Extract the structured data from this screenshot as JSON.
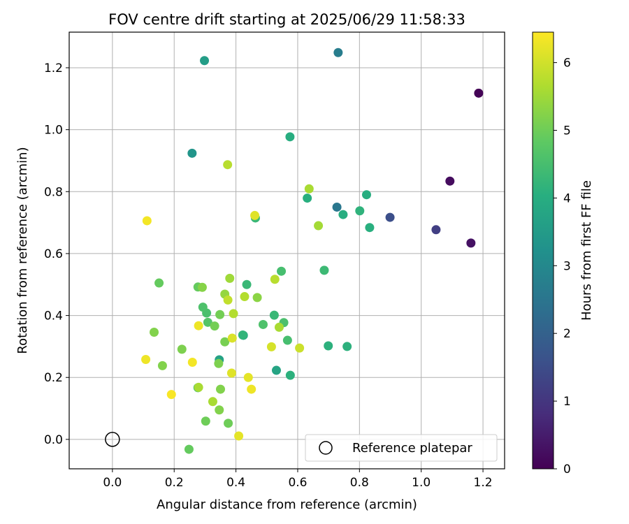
{
  "chart_data": {
    "type": "scatter",
    "title": "FOV centre drift starting at 2025/06/29 11:58:33",
    "xlabel": "Angular distance from reference (arcmin)",
    "ylabel": "Rotation from reference (arcmin)",
    "xlim": [
      -0.14,
      1.27
    ],
    "ylim": [
      -0.095,
      1.315
    ],
    "xticks": [
      0.0,
      0.2,
      0.4,
      0.6,
      0.8,
      1.0,
      1.2
    ],
    "yticks": [
      0.0,
      0.2,
      0.4,
      0.6,
      0.8,
      1.0,
      1.2
    ],
    "xtick_labels": [
      "0.0",
      "0.2",
      "0.4",
      "0.6",
      "0.8",
      "1.0",
      "1.2"
    ],
    "ytick_labels": [
      "0.0",
      "0.2",
      "0.4",
      "0.6",
      "0.8",
      "1.0",
      "1.2"
    ],
    "grid": true,
    "colormap": "viridis",
    "colorbar": {
      "label": "Hours from first FF file",
      "range": [
        0,
        6.45
      ],
      "ticks": [
        0,
        1,
        2,
        3,
        4,
        5,
        6
      ],
      "tick_labels": [
        "0",
        "1",
        "2",
        "3",
        "4",
        "5",
        "6"
      ]
    },
    "legend": {
      "placement": "lower-right",
      "entries": [
        {
          "label": "Reference platepar"
        }
      ]
    },
    "reference_point": {
      "x": 0.0,
      "y": 0.0
    },
    "points": [
      {
        "x": 1.186,
        "y": 1.118,
        "h": 0.05
      },
      {
        "x": 1.093,
        "y": 0.834,
        "h": 0.2
      },
      {
        "x": 1.161,
        "y": 0.634,
        "h": 0.3
      },
      {
        "x": 1.048,
        "y": 0.677,
        "h": 1.2
      },
      {
        "x": 0.899,
        "y": 0.717,
        "h": 1.55
      },
      {
        "x": 0.727,
        "y": 0.75,
        "h": 2.55
      },
      {
        "x": 0.731,
        "y": 1.249,
        "h": 2.7
      },
      {
        "x": 0.258,
        "y": 0.924,
        "h": 3.35
      },
      {
        "x": 0.298,
        "y": 1.223,
        "h": 3.55
      },
      {
        "x": 0.424,
        "y": 0.336,
        "h": 3.75
      },
      {
        "x": 0.346,
        "y": 0.257,
        "h": 3.7
      },
      {
        "x": 0.531,
        "y": 0.223,
        "h": 3.75
      },
      {
        "x": 0.575,
        "y": 0.977,
        "h": 4.0
      },
      {
        "x": 0.747,
        "y": 0.726,
        "h": 4.0
      },
      {
        "x": 0.823,
        "y": 0.79,
        "h": 4.0
      },
      {
        "x": 0.833,
        "y": 0.684,
        "h": 4.05
      },
      {
        "x": 0.801,
        "y": 0.738,
        "h": 4.15
      },
      {
        "x": 0.631,
        "y": 0.779,
        "h": 4.05
      },
      {
        "x": 0.699,
        "y": 0.302,
        "h": 4.1
      },
      {
        "x": 0.76,
        "y": 0.3,
        "h": 4.1
      },
      {
        "x": 0.576,
        "y": 0.207,
        "h": 4.1
      },
      {
        "x": 0.686,
        "y": 0.546,
        "h": 4.35
      },
      {
        "x": 0.435,
        "y": 0.5,
        "h": 4.3
      },
      {
        "x": 0.463,
        "y": 0.715,
        "h": 4.3
      },
      {
        "x": 0.524,
        "y": 0.401,
        "h": 4.3
      },
      {
        "x": 0.422,
        "y": 0.337,
        "h": 4.2
      },
      {
        "x": 0.567,
        "y": 0.32,
        "h": 4.5
      },
      {
        "x": 0.555,
        "y": 0.377,
        "h": 4.55
      },
      {
        "x": 0.547,
        "y": 0.543,
        "h": 4.5
      },
      {
        "x": 0.488,
        "y": 0.371,
        "h": 4.6
      },
      {
        "x": 0.305,
        "y": 0.408,
        "h": 4.55
      },
      {
        "x": 0.293,
        "y": 0.427,
        "h": 4.6
      },
      {
        "x": 0.309,
        "y": 0.378,
        "h": 4.7
      },
      {
        "x": 0.277,
        "y": 0.167,
        "h": 4.6
      },
      {
        "x": 0.277,
        "y": 0.492,
        "h": 4.9
      },
      {
        "x": 0.151,
        "y": 0.505,
        "h": 4.9
      },
      {
        "x": 0.248,
        "y": -0.032,
        "h": 4.9
      },
      {
        "x": 0.302,
        "y": 0.059,
        "h": 5.0
      },
      {
        "x": 0.375,
        "y": 0.052,
        "h": 5.0
      },
      {
        "x": 0.331,
        "y": 0.366,
        "h": 5.05
      },
      {
        "x": 0.348,
        "y": 0.403,
        "h": 5.05
      },
      {
        "x": 0.364,
        "y": 0.315,
        "h": 5.1
      },
      {
        "x": 0.344,
        "y": 0.245,
        "h": 5.15
      },
      {
        "x": 0.225,
        "y": 0.291,
        "h": 5.15
      },
      {
        "x": 0.162,
        "y": 0.238,
        "h": 5.2
      },
      {
        "x": 0.135,
        "y": 0.346,
        "h": 5.2
      },
      {
        "x": 0.35,
        "y": 0.162,
        "h": 5.2
      },
      {
        "x": 0.346,
        "y": 0.095,
        "h": 5.2
      },
      {
        "x": 0.469,
        "y": 0.458,
        "h": 5.3
      },
      {
        "x": 0.291,
        "y": 0.491,
        "h": 5.25
      },
      {
        "x": 0.364,
        "y": 0.469,
        "h": 5.4
      },
      {
        "x": 0.38,
        "y": 0.52,
        "h": 5.5
      },
      {
        "x": 0.667,
        "y": 0.69,
        "h": 5.55
      },
      {
        "x": 0.637,
        "y": 0.809,
        "h": 5.6
      },
      {
        "x": 0.54,
        "y": 0.362,
        "h": 5.6
      },
      {
        "x": 0.325,
        "y": 0.122,
        "h": 5.6
      },
      {
        "x": 0.279,
        "y": 0.168,
        "h": 5.6
      },
      {
        "x": 0.392,
        "y": 0.406,
        "h": 5.7
      },
      {
        "x": 0.428,
        "y": 0.461,
        "h": 5.7
      },
      {
        "x": 0.373,
        "y": 0.887,
        "h": 5.75
      },
      {
        "x": 0.526,
        "y": 0.517,
        "h": 5.75
      },
      {
        "x": 0.374,
        "y": 0.45,
        "h": 5.85
      },
      {
        "x": 0.606,
        "y": 0.295,
        "h": 5.95
      },
      {
        "x": 0.515,
        "y": 0.299,
        "h": 6.05
      },
      {
        "x": 0.461,
        "y": 0.723,
        "h": 6.15
      },
      {
        "x": 0.388,
        "y": 0.327,
        "h": 6.1
      },
      {
        "x": 0.386,
        "y": 0.214,
        "h": 6.15
      },
      {
        "x": 0.44,
        "y": 0.2,
        "h": 6.2
      },
      {
        "x": 0.45,
        "y": 0.162,
        "h": 6.3
      },
      {
        "x": 0.409,
        "y": 0.011,
        "h": 6.2
      },
      {
        "x": 0.279,
        "y": 0.367,
        "h": 6.3
      },
      {
        "x": 0.259,
        "y": 0.249,
        "h": 6.35
      },
      {
        "x": 0.108,
        "y": 0.258,
        "h": 6.3
      },
      {
        "x": 0.112,
        "y": 0.706,
        "h": 6.35
      },
      {
        "x": 0.191,
        "y": 0.145,
        "h": 6.4
      }
    ]
  }
}
